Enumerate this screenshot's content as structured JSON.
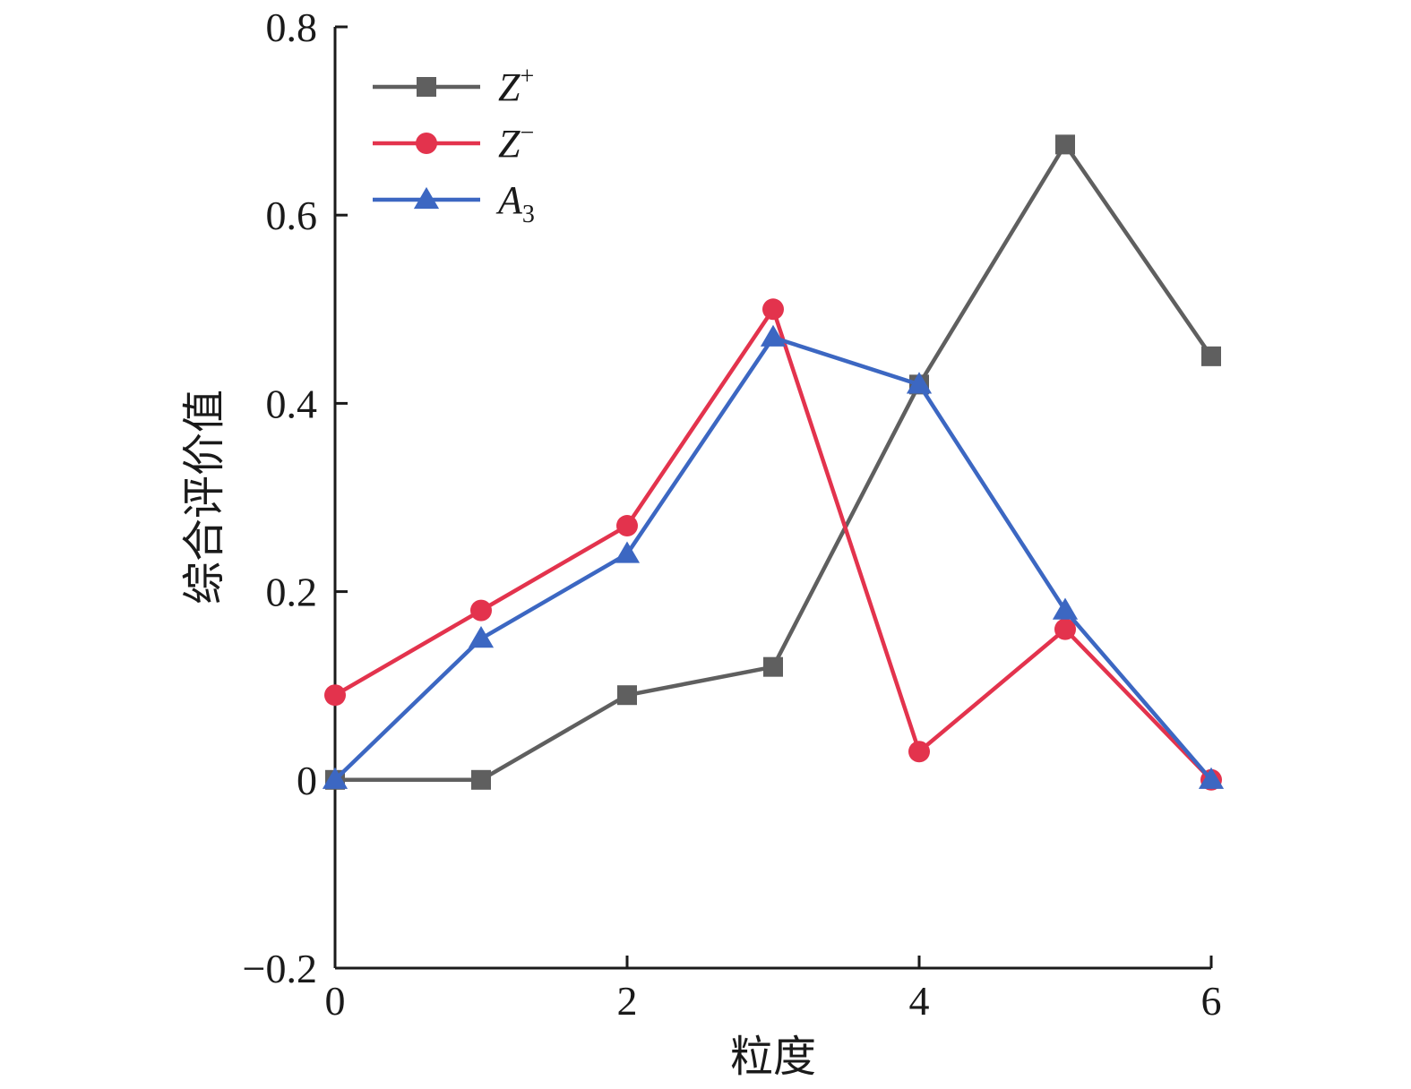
{
  "chart_data": {
    "type": "line",
    "xlabel": "粒度",
    "ylabel": "综合评价值",
    "xlim": [
      0,
      6
    ],
    "ylim": [
      -0.2,
      0.8
    ],
    "x_ticks": [
      "0",
      "2",
      "4",
      "6"
    ],
    "y_ticks": [
      "−0.2",
      "0",
      "0.2",
      "0.4",
      "0.6",
      "0.8"
    ],
    "x": [
      0,
      1,
      2,
      3,
      4,
      5,
      6
    ],
    "grid": false,
    "legend_position": "top-left",
    "series": [
      {
        "name": "Z+",
        "base": "Z",
        "sup": "+",
        "sub": "",
        "marker": "square",
        "color": "#5f5f5f",
        "values": [
          0.0,
          0.0,
          0.09,
          0.12,
          0.42,
          0.675,
          0.45
        ]
      },
      {
        "name": "Z−",
        "base": "Z",
        "sup": "−",
        "sub": "",
        "marker": "circle",
        "color": "#e3334d",
        "values": [
          0.09,
          0.18,
          0.27,
          0.5,
          0.03,
          0.16,
          0.0
        ]
      },
      {
        "name": "A3",
        "base": "A",
        "sup": "",
        "sub": "3",
        "marker": "triangle",
        "color": "#3c67c2",
        "values": [
          0.0,
          0.15,
          0.24,
          0.47,
          0.42,
          0.18,
          0.0
        ]
      }
    ]
  }
}
